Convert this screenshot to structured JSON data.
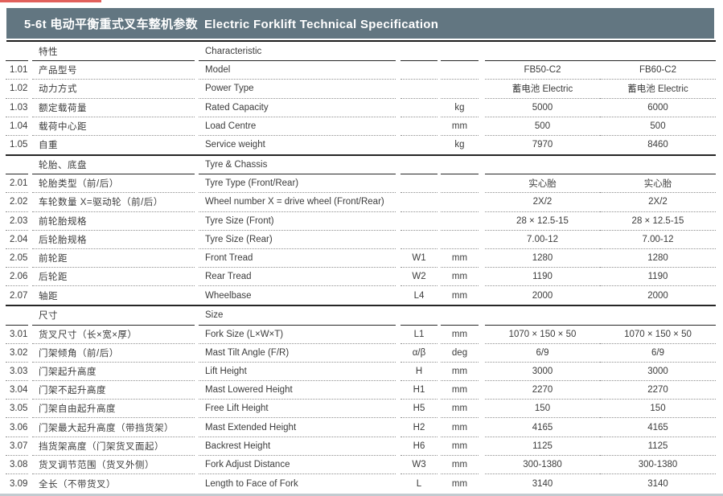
{
  "page": {
    "accent_color": "#e2605b",
    "titlebar_color": "#627681",
    "title_cn": "5-6t 电动平衡重式叉车整机参数",
    "title_en": "Electric Forklift Technical Specification"
  },
  "table": {
    "sections": [
      {
        "header_cn": "特性",
        "header_en": "Characteristic",
        "rows": [
          {
            "no": "1.01",
            "cn": "产品型号",
            "en": "Model",
            "sym": "",
            "unit": "",
            "v1": "FB50-C2",
            "v2": "FB60-C2"
          },
          {
            "no": "1.02",
            "cn": "动力方式",
            "en": "Power Type",
            "sym": "",
            "unit": "",
            "v1": "蓄电池  Electric",
            "v2": "蓄电池  Electric"
          },
          {
            "no": "1.03",
            "cn": "额定载荷量",
            "en": "Rated Capacity",
            "sym": "",
            "unit": "kg",
            "v1": "5000",
            "v2": "6000"
          },
          {
            "no": "1.04",
            "cn": "载荷中心距",
            "en": "Load Centre",
            "sym": "",
            "unit": "mm",
            "v1": "500",
            "v2": "500"
          },
          {
            "no": "1.05",
            "cn": "自重",
            "en": "Service weight",
            "sym": "",
            "unit": "kg",
            "v1": "7970",
            "v2": "8460"
          }
        ]
      },
      {
        "header_cn": "轮胎、底盘",
        "header_en": "Tyre & Chassis",
        "rows": [
          {
            "no": "2.01",
            "cn": "轮胎类型（前/后）",
            "en": "Tyre Type (Front/Rear)",
            "sym": "",
            "unit": "",
            "v1": "实心胎",
            "v2": "实心胎"
          },
          {
            "no": "2.02",
            "cn": "车轮数量 X=驱动轮（前/后）",
            "en": "Wheel number X = drive wheel (Front/Rear)",
            "sym": "",
            "unit": "",
            "v1": "2X/2",
            "v2": "2X/2"
          },
          {
            "no": "2.03",
            "cn": "前轮胎规格",
            "en": "Tyre Size (Front)",
            "sym": "",
            "unit": "",
            "v1": "28 × 12.5-15",
            "v2": "28 × 12.5-15"
          },
          {
            "no": "2.04",
            "cn": "后轮胎规格",
            "en": "Tyre Size (Rear)",
            "sym": "",
            "unit": "",
            "v1": "7.00-12",
            "v2": "7.00-12"
          },
          {
            "no": "2.05",
            "cn": "前轮距",
            "en": "Front Tread",
            "sym": "W1",
            "unit": "mm",
            "v1": "1280",
            "v2": "1280"
          },
          {
            "no": "2.06",
            "cn": "后轮距",
            "en": "Rear Tread",
            "sym": "W2",
            "unit": "mm",
            "v1": "1190",
            "v2": "1190"
          },
          {
            "no": "2.07",
            "cn": "轴距",
            "en": "Wheelbase",
            "sym": "L4",
            "unit": "mm",
            "v1": "2000",
            "v2": "2000"
          }
        ]
      },
      {
        "header_cn": "尺寸",
        "header_en": "Size",
        "rows": [
          {
            "no": "3.01",
            "cn": "货叉尺寸（长×宽×厚）",
            "en": "Fork Size (L×W×T)",
            "sym": "L1",
            "unit": "mm",
            "v1": "1070 × 150 × 50",
            "v2": "1070 × 150 × 50"
          },
          {
            "no": "3.02",
            "cn": "门架倾角（前/后）",
            "en": "Mast Tilt Angle (F/R)",
            "sym": "α/β",
            "unit": "deg",
            "v1": "6/9",
            "v2": "6/9"
          },
          {
            "no": "3.03",
            "cn": "门架起升高度",
            "en": "Lift Height",
            "sym": "H",
            "unit": "mm",
            "v1": "3000",
            "v2": "3000"
          },
          {
            "no": "3.04",
            "cn": "门架不起升高度",
            "en": "Mast Lowered Height",
            "sym": "H1",
            "unit": "mm",
            "v1": "2270",
            "v2": "2270"
          },
          {
            "no": "3.05",
            "cn": "门架自由起升高度",
            "en": "Free Lift Height",
            "sym": "H5",
            "unit": "mm",
            "v1": "150",
            "v2": "150"
          },
          {
            "no": "3.06",
            "cn": "门架最大起升高度（带挡货架）",
            "en": "Mast Extended Height",
            "sym": "H2",
            "unit": "mm",
            "v1": "4165",
            "v2": "4165"
          },
          {
            "no": "3.07",
            "cn": "挡货架高度（门架货叉面起）",
            "en": "Backrest Height",
            "sym": "H6",
            "unit": "mm",
            "v1": "1125",
            "v2": "1125"
          },
          {
            "no": "3.08",
            "cn": "货叉调节范围（货叉外侧）",
            "en": "Fork Adjust Distance",
            "sym": "W3",
            "unit": "mm",
            "v1": "300-1380",
            "v2": "300-1380"
          },
          {
            "no": "3.09",
            "cn": "全长（不带货叉）",
            "en": "Length to Face of Fork",
            "sym": "L",
            "unit": "mm",
            "v1": "3140",
            "v2": "3140"
          }
        ]
      }
    ]
  }
}
